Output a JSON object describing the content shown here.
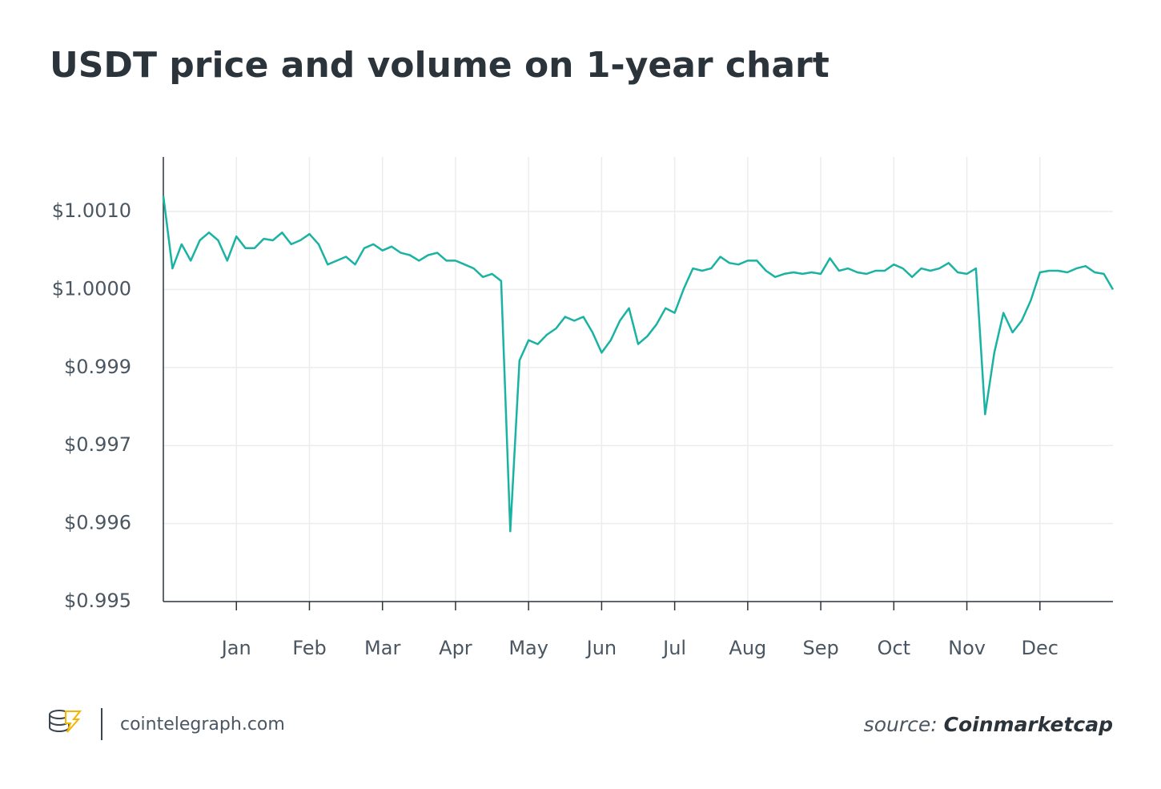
{
  "chart_data": {
    "type": "line",
    "title": "USDT price and volume on 1-year chart",
    "color": "#1ab3a3",
    "grid": true,
    "categories": [
      null,
      null,
      null,
      null,
      null,
      null,
      null,
      null,
      "Jan",
      null,
      null,
      null,
      null,
      null,
      null,
      null,
      "Feb",
      null,
      null,
      null,
      null,
      null,
      null,
      null,
      "Mar",
      null,
      null,
      null,
      null,
      null,
      null,
      null,
      "Apr",
      null,
      null,
      null,
      null,
      null,
      null,
      null,
      "May",
      null,
      null,
      null,
      null,
      null,
      null,
      null,
      "Jun",
      null,
      null,
      null,
      null,
      null,
      null,
      null,
      "Jul",
      null,
      null,
      null,
      null,
      null,
      null,
      null,
      "Aug",
      null,
      null,
      null,
      null,
      null,
      null,
      null,
      "Sep",
      null,
      null,
      null,
      null,
      null,
      null,
      null,
      "Oct",
      null,
      null,
      null,
      null,
      null,
      null,
      null,
      "Nov",
      null,
      null,
      null,
      null,
      null,
      null,
      null,
      "Dec",
      null,
      null,
      null,
      null,
      null,
      null,
      null,
      null
    ],
    "values": [
      1.0012,
      1.00027,
      1.00058,
      1.00037,
      1.00063,
      1.00073,
      1.00063,
      1.00037,
      1.00068,
      1.00053,
      1.00053,
      1.00065,
      1.00063,
      1.00073,
      1.00058,
      1.00063,
      1.00071,
      1.00058,
      1.00032,
      1.00037,
      1.00042,
      1.00032,
      1.00053,
      1.00058,
      1.0005,
      1.00055,
      1.00047,
      1.00044,
      1.00037,
      1.00044,
      1.00047,
      1.00037,
      1.00037,
      1.00032,
      1.00027,
      1.00016,
      1.0002,
      1.00011,
      0.9959,
      0.99909,
      0.99935,
      0.9993,
      0.99942,
      0.9995,
      0.99965,
      0.9996,
      0.99965,
      0.99945,
      0.99919,
      0.99935,
      0.9996,
      0.99976,
      0.9993,
      0.9994,
      0.99955,
      0.99976,
      0.9997,
      1.00001,
      1.00027,
      1.00024,
      1.00027,
      1.00042,
      1.00034,
      1.00032,
      1.00037,
      1.00037,
      1.00024,
      1.00016,
      1.0002,
      1.00022,
      1.0002,
      1.00022,
      1.0002,
      1.0004,
      1.00024,
      1.00027,
      1.00022,
      1.0002,
      1.00024,
      1.00024,
      1.00032,
      1.00027,
      1.00016,
      1.00027,
      1.00024,
      1.00027,
      1.00034,
      1.00022,
      1.0002,
      1.00027,
      0.9978,
      0.99919,
      0.9997,
      0.99945,
      0.9996,
      0.99986,
      1.00022,
      1.00024,
      1.00024,
      1.00022,
      1.00027,
      1.0003,
      1.00022,
      1.0002,
      1.0
    ],
    "ylim": [
      0.995,
      1.0017
    ],
    "yticks": [
      {
        "value": 0.995,
        "label": "$0.995"
      },
      {
        "value": 0.996,
        "label": "$0.996"
      },
      {
        "value": 0.997,
        "label": "$0.997"
      },
      {
        "value": 0.999,
        "label": "$0.999"
      },
      {
        "value": 1.0,
        "label": "$1.0000"
      },
      {
        "value": 1.001,
        "label": "$1.0010"
      }
    ]
  },
  "footer": {
    "site": "cointelegraph.com",
    "source_prefix": "source:",
    "source": "Coinmarketcap"
  }
}
